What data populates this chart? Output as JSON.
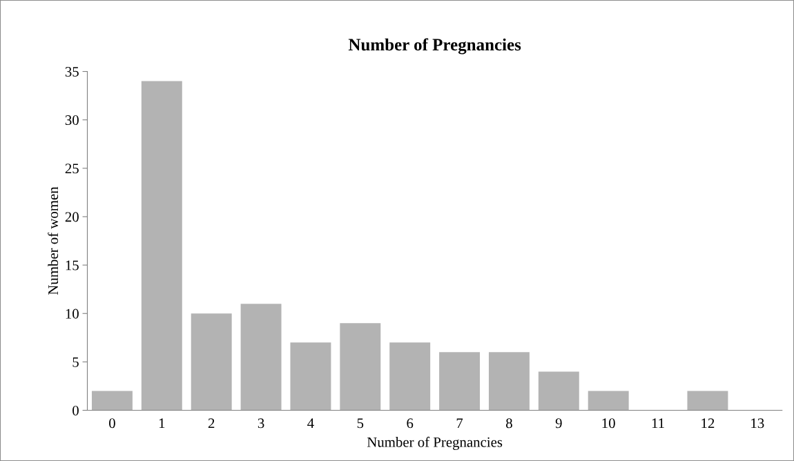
{
  "chart_data": {
    "type": "bar",
    "title": "Number of Pregnancies",
    "xlabel": "Number of Pregnancies",
    "ylabel": "Number of women",
    "categories": [
      "0",
      "1",
      "2",
      "3",
      "4",
      "5",
      "6",
      "7",
      "8",
      "9",
      "10",
      "11",
      "12",
      "13"
    ],
    "values": [
      2,
      34,
      10,
      11,
      7,
      9,
      7,
      6,
      6,
      4,
      2,
      0,
      2,
      0
    ],
    "color": "#b3b3b3",
    "ylim": [
      0,
      35
    ],
    "yticks": [
      0,
      5,
      10,
      15,
      20,
      25,
      30,
      35
    ],
    "grid": false,
    "legend": false
  }
}
